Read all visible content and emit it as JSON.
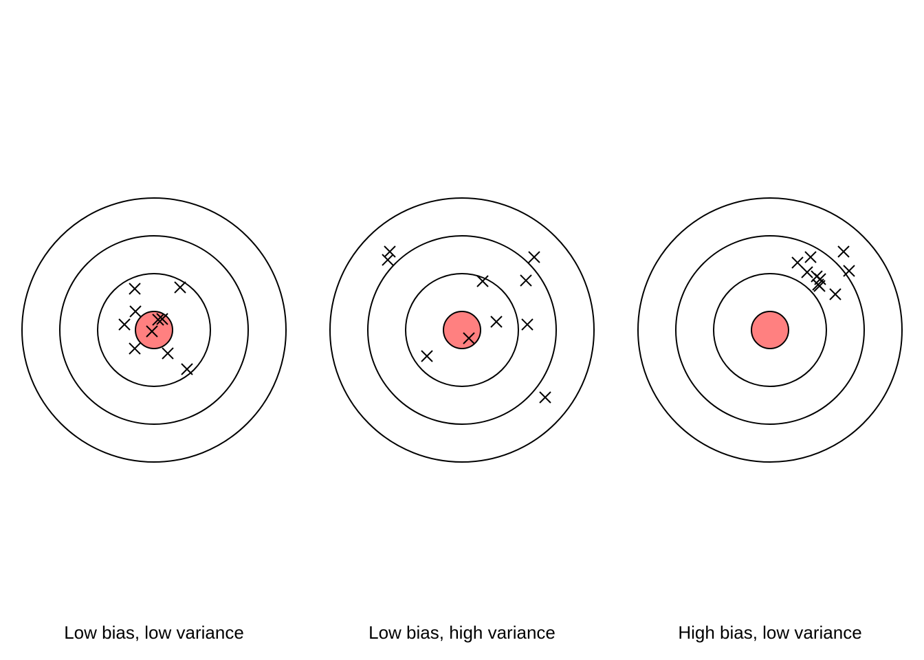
{
  "colors": {
    "bullseye_fill": "#ff8080",
    "stroke": "#000000",
    "background": "#ffffff"
  },
  "targets": [
    {
      "caption": "Low bias, low variance",
      "shots": [
        [
          -28,
          60
        ],
        [
          38,
          62
        ],
        [
          -27,
          27
        ],
        [
          -43,
          8
        ],
        [
          6,
          15
        ],
        [
          12,
          16
        ],
        [
          -3,
          -2
        ],
        [
          -28,
          -27
        ],
        [
          20,
          -34
        ],
        [
          48,
          -57
        ]
      ]
    },
    {
      "caption": "Low bias, high variance",
      "shots": [
        [
          -105,
          114
        ],
        [
          -108,
          102
        ],
        [
          105,
          106
        ],
        [
          93,
          72
        ],
        [
          30,
          71
        ],
        [
          50,
          12
        ],
        [
          95,
          8
        ],
        [
          10,
          -12
        ],
        [
          -51,
          -38
        ],
        [
          121,
          -98
        ]
      ]
    },
    {
      "caption": "High bias, low variance",
      "shots": [
        [
          107,
          114
        ],
        [
          59,
          106
        ],
        [
          40,
          98
        ],
        [
          115,
          86
        ],
        [
          54,
          84
        ],
        [
          68,
          78
        ],
        [
          73,
          74
        ],
        [
          70,
          66
        ],
        [
          72,
          64
        ],
        [
          95,
          52
        ]
      ]
    }
  ]
}
